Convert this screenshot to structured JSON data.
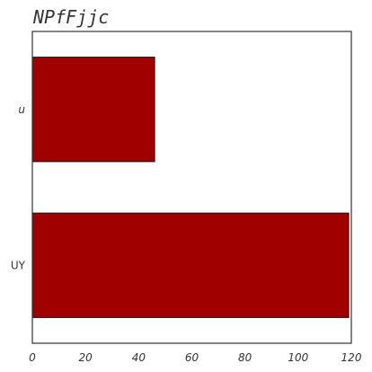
{
  "chart_data": {
    "type": "bar",
    "orientation": "horizontal",
    "title": "NPfFjjc",
    "xlabel": "",
    "ylabel": "",
    "categories": [
      "u",
      "UY"
    ],
    "values": [
      46,
      119
    ],
    "xlim": [
      0,
      120
    ],
    "xticks": [
      "0",
      "20",
      "40",
      "60",
      "80",
      "100",
      "120"
    ],
    "grid": false,
    "bar_color": "#a00000"
  }
}
